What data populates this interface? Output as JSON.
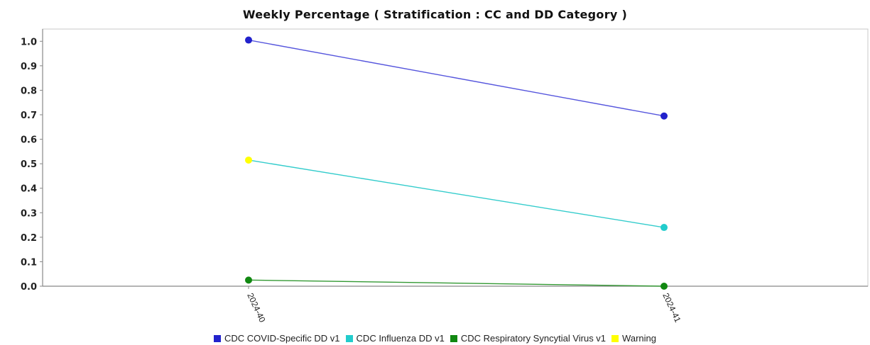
{
  "chart_data": {
    "type": "line",
    "title": "Weekly Percentage ( Stratification : CC and DD Category )",
    "xlabel": "",
    "ylabel": "",
    "categories": [
      "2024-40",
      "2024-41"
    ],
    "ylim": [
      0.0,
      1.05
    ],
    "yticks": [
      "0.0",
      "0.1",
      "0.2",
      "0.3",
      "0.4",
      "0.5",
      "0.6",
      "0.7",
      "0.8",
      "0.9",
      "1.0"
    ],
    "grid": true,
    "legend_position": "bottom",
    "series": [
      {
        "name": "CDC COVID-Specific DD v1",
        "values": [
          1.005,
          0.695
        ],
        "color": "#2222cc",
        "line_color": "#5555dd"
      },
      {
        "name": "CDC Influenza DD v1",
        "values": [
          0.515,
          0.24
        ],
        "color": "#22cccc",
        "line_color": "#33cccc"
      },
      {
        "name": "CDC Respiratory Syncytial Virus v1",
        "values": [
          0.025,
          0.0
        ],
        "color": "#118811",
        "line_color": "#339933"
      }
    ],
    "warning": {
      "name": "Warning",
      "color": "#ffff00",
      "points": [
        {
          "series": 1,
          "category": 0
        }
      ]
    }
  }
}
